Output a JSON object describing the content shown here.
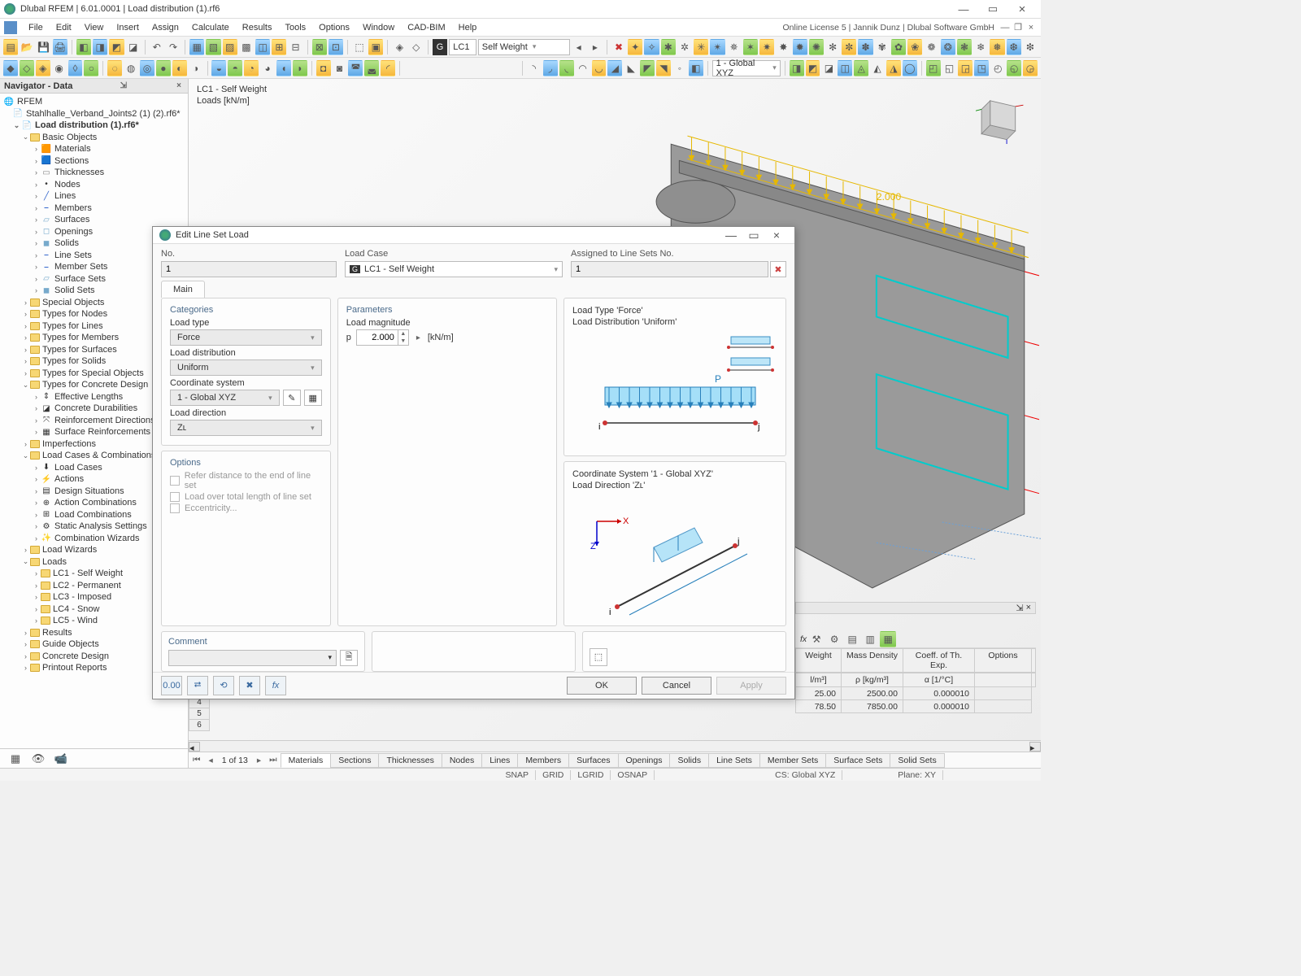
{
  "titlebar": {
    "text": "Dlubal RFEM | 6.01.0001 | Load distribution (1).rf6"
  },
  "menubar": {
    "items": [
      "File",
      "Edit",
      "View",
      "Insert",
      "Assign",
      "Calculate",
      "Results",
      "Tools",
      "Options",
      "Window",
      "CAD-BIM",
      "Help"
    ],
    "right": "Online License 5 | Jannik Dunz | Dlubal Software GmbH"
  },
  "tb_lc": {
    "chip": "G",
    "code": "LC1",
    "name": "Self Weight"
  },
  "tb_cs": "1 - Global XYZ",
  "navigator": {
    "title": "Navigator - Data",
    "root": "RFEM",
    "projects": [
      "Stahlhalle_Verband_Joints2 (1) (2).rf6*",
      "Load distribution (1).rf6*"
    ],
    "basic": "Basic Objects",
    "basic_items": [
      "Materials",
      "Sections",
      "Thicknesses",
      "Nodes",
      "Lines",
      "Members",
      "Surfaces",
      "Openings",
      "Solids",
      "Line Sets",
      "Member Sets",
      "Surface Sets",
      "Solid Sets"
    ],
    "groups": [
      "Special Objects",
      "Types for Nodes",
      "Types for Lines",
      "Types for Members",
      "Types for Surfaces",
      "Types for Solids",
      "Types for Special Objects"
    ],
    "concrete": "Types for Concrete Design",
    "concrete_items": [
      "Effective Lengths",
      "Concrete Durabilities",
      "Reinforcement Directions",
      "Surface Reinforcements"
    ],
    "imperf": "Imperfections",
    "lcc": "Load Cases & Combinations",
    "lcc_items": [
      "Load Cases",
      "Actions",
      "Design Situations",
      "Action Combinations",
      "Load Combinations",
      "Static Analysis Settings",
      "Combination Wizards"
    ],
    "lw": "Load Wizards",
    "loads": "Loads",
    "load_items": [
      "LC1 - Self Weight",
      "LC2 - Permanent",
      "LC3 - Imposed",
      "LC4 - Snow",
      "LC5 - Wind"
    ],
    "tail": [
      "Results",
      "Guide Objects",
      "Concrete Design",
      "Printout Reports"
    ]
  },
  "viewport": {
    "lbl1": "LC1 - Self Weight",
    "lbl2": "Loads [kN/m]",
    "dim": "2.000"
  },
  "dlg": {
    "title": "Edit Line Set Load",
    "no_lbl": "No.",
    "no_val": "1",
    "lc_lbl": "Load Case",
    "lc_val": "LC1 - Self Weight",
    "lc_chip": "G",
    "assign_lbl": "Assigned to Line Sets No.",
    "assign_val": "1",
    "tab": "Main",
    "cat": "Categories",
    "opt": "Options",
    "par": "Parameters",
    "lt_lbl": "Load type",
    "lt_val": "Force",
    "ld_lbl": "Load distribution",
    "ld_val": "Uniform",
    "cs_lbl": "Coordinate system",
    "cs_val": "1 - Global XYZ",
    "dir_lbl": "Load direction",
    "dir_val": "Zʟ",
    "opt1": "Refer distance to the end of line set",
    "opt2": "Load over total length of line set",
    "opt3": "Eccentricity...",
    "pm_lbl": "Load magnitude",
    "p_sym": "p",
    "p_val": "2.000",
    "p_unit": "[kN/m]",
    "pv1a": "Load Type 'Force'",
    "pv1b": "Load Distribution 'Uniform'",
    "pv2a": "Coordinate System '1 - Global XYZ'",
    "pv2b": "Load Direction 'Zʟ'",
    "pv_p": "P",
    "pv_x": "X",
    "pv_z": "Z",
    "pv_i": "i",
    "pv_j": "j",
    "comment": "Comment",
    "ok": "OK",
    "cancel": "Cancel",
    "apply": "Apply"
  },
  "table": {
    "hdrs": [
      "Weight",
      "Mass Density",
      "Coeff. of Th. Exp.",
      "Options"
    ],
    "sub": [
      "l/m³]",
      "ρ [kg/m³]",
      "α [1/°C]",
      ""
    ],
    "rows": [
      [
        "25.00",
        "2500.00",
        "0.000010",
        ""
      ],
      [
        "78.50",
        "7850.00",
        "0.000010",
        ""
      ]
    ]
  },
  "rownums": [
    "4",
    "5",
    "6"
  ],
  "btm": {
    "page": "1 of 13",
    "tabs": [
      "Materials",
      "Sections",
      "Thicknesses",
      "Nodes",
      "Lines",
      "Members",
      "Surfaces",
      "Openings",
      "Solids",
      "Line Sets",
      "Member Sets",
      "Surface Sets",
      "Solid Sets"
    ]
  },
  "status": {
    "snap": "SNAP",
    "grid": "GRID",
    "lgrid": "LGRID",
    "osnap": "OSNAP",
    "cs": "CS: Global XYZ",
    "plane": "Plane: XY"
  }
}
